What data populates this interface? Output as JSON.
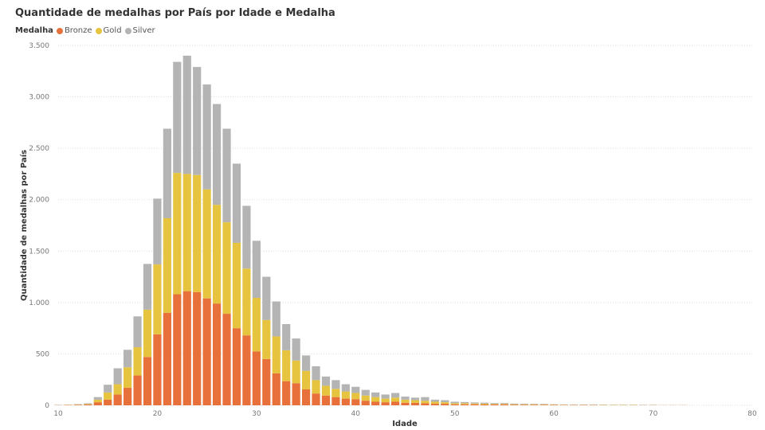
{
  "chart_data": {
    "type": "bar",
    "stacked": true,
    "title": "Quantidade de medalhas por País por Idade e Medalha",
    "legend_title": "Medalha",
    "xlabel": "Idade",
    "ylabel": "Quantidade de medalhas por País",
    "xlim": [
      10,
      80
    ],
    "ylim": [
      0,
      3500
    ],
    "x_ticks": [
      10,
      20,
      30,
      40,
      50,
      60,
      70,
      80
    ],
    "y_ticks": [
      {
        "value": 0,
        "label": "0"
      },
      {
        "value": 500,
        "label": "500"
      },
      {
        "value": 1000,
        "label": "1.000"
      },
      {
        "value": 1500,
        "label": "1.500"
      },
      {
        "value": 2000,
        "label": "2.000"
      },
      {
        "value": 2500,
        "label": "2.500"
      },
      {
        "value": 3000,
        "label": "3.000"
      },
      {
        "value": 3500,
        "label": "3.500"
      }
    ],
    "grid": true,
    "legend_position": "top-left",
    "x": [
      10,
      11,
      12,
      13,
      14,
      15,
      16,
      17,
      18,
      19,
      20,
      21,
      22,
      23,
      24,
      25,
      26,
      27,
      28,
      29,
      30,
      31,
      32,
      33,
      34,
      35,
      36,
      37,
      38,
      39,
      40,
      41,
      42,
      43,
      44,
      45,
      46,
      47,
      48,
      49,
      50,
      51,
      52,
      53,
      54,
      55,
      56,
      57,
      58,
      59,
      60,
      61,
      62,
      63,
      64,
      65,
      66,
      67,
      68,
      69,
      70,
      71,
      72,
      73
    ],
    "series": [
      {
        "name": "Bronze",
        "color": "#E8703A",
        "values": [
          2,
          3,
          4,
          8,
          30,
          55,
          105,
          170,
          290,
          470,
          690,
          900,
          1080,
          1110,
          1100,
          1040,
          990,
          890,
          750,
          680,
          525,
          450,
          310,
          235,
          215,
          155,
          115,
          95,
          80,
          65,
          60,
          45,
          35,
          30,
          35,
          25,
          25,
          20,
          15,
          15,
          10,
          10,
          10,
          8,
          8,
          8,
          6,
          5,
          5,
          5,
          4,
          3,
          3,
          3,
          3,
          2,
          2,
          2,
          2,
          2,
          2,
          1,
          1,
          1
        ]
      },
      {
        "name": "Gold",
        "color": "#E6C440",
        "values": [
          1,
          2,
          3,
          5,
          25,
          70,
          100,
          200,
          275,
          460,
          680,
          920,
          1180,
          1140,
          1140,
          1060,
          960,
          890,
          830,
          650,
          520,
          380,
          360,
          300,
          220,
          180,
          130,
          95,
          80,
          70,
          60,
          50,
          45,
          35,
          40,
          30,
          25,
          25,
          20,
          15,
          10,
          10,
          8,
          8,
          6,
          6,
          5,
          5,
          5,
          4,
          3,
          3,
          2,
          2,
          2,
          2,
          2,
          2,
          2,
          1,
          1,
          1,
          1,
          1
        ]
      },
      {
        "name": "Silver",
        "color": "#B4B4B4",
        "values": [
          2,
          2,
          4,
          7,
          25,
          75,
          155,
          170,
          300,
          445,
          640,
          870,
          1080,
          1150,
          1050,
          1020,
          980,
          910,
          770,
          610,
          555,
          420,
          340,
          255,
          215,
          150,
          135,
          90,
          85,
          70,
          60,
          55,
          45,
          40,
          45,
          30,
          25,
          35,
          20,
          20,
          15,
          12,
          10,
          10,
          8,
          8,
          6,
          6,
          5,
          5,
          3,
          3,
          3,
          3,
          3,
          3,
          2,
          2,
          2,
          2,
          2,
          1,
          1,
          1
        ]
      }
    ]
  }
}
